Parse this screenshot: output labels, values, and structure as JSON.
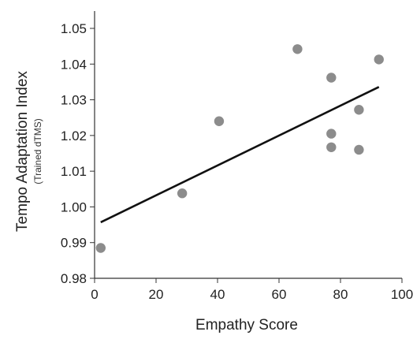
{
  "chart_data": {
    "type": "scatter",
    "xlabel": "Empathy Score",
    "ylabel": "Tempo Adaptation Index",
    "ylabel_sub": "(Trained dTMS)",
    "xlim": [
      0,
      100
    ],
    "ylim": [
      0.98,
      1.05
    ],
    "x_ticks": [
      0,
      20,
      40,
      60,
      80,
      100
    ],
    "y_ticks": [
      "0.98",
      "0.99",
      "1.00",
      "1.01",
      "1.02",
      "1.03",
      "1.04",
      "1.05"
    ],
    "grid": false,
    "points": [
      {
        "x": 2,
        "y": 0.9885
      },
      {
        "x": 28.5,
        "y": 1.0038
      },
      {
        "x": 40.5,
        "y": 1.024
      },
      {
        "x": 66,
        "y": 1.0442
      },
      {
        "x": 77,
        "y": 1.0362
      },
      {
        "x": 77,
        "y": 1.0205
      },
      {
        "x": 77,
        "y": 1.0167
      },
      {
        "x": 86,
        "y": 1.0272
      },
      {
        "x": 86,
        "y": 1.016
      },
      {
        "x": 92.5,
        "y": 1.0413
      }
    ],
    "trendline": {
      "x": [
        2,
        92.5
      ],
      "y": [
        0.9957,
        1.0336
      ]
    },
    "colors": {
      "points": "#8c8c8c",
      "trendline": "#111111",
      "axis": "#333333"
    }
  }
}
